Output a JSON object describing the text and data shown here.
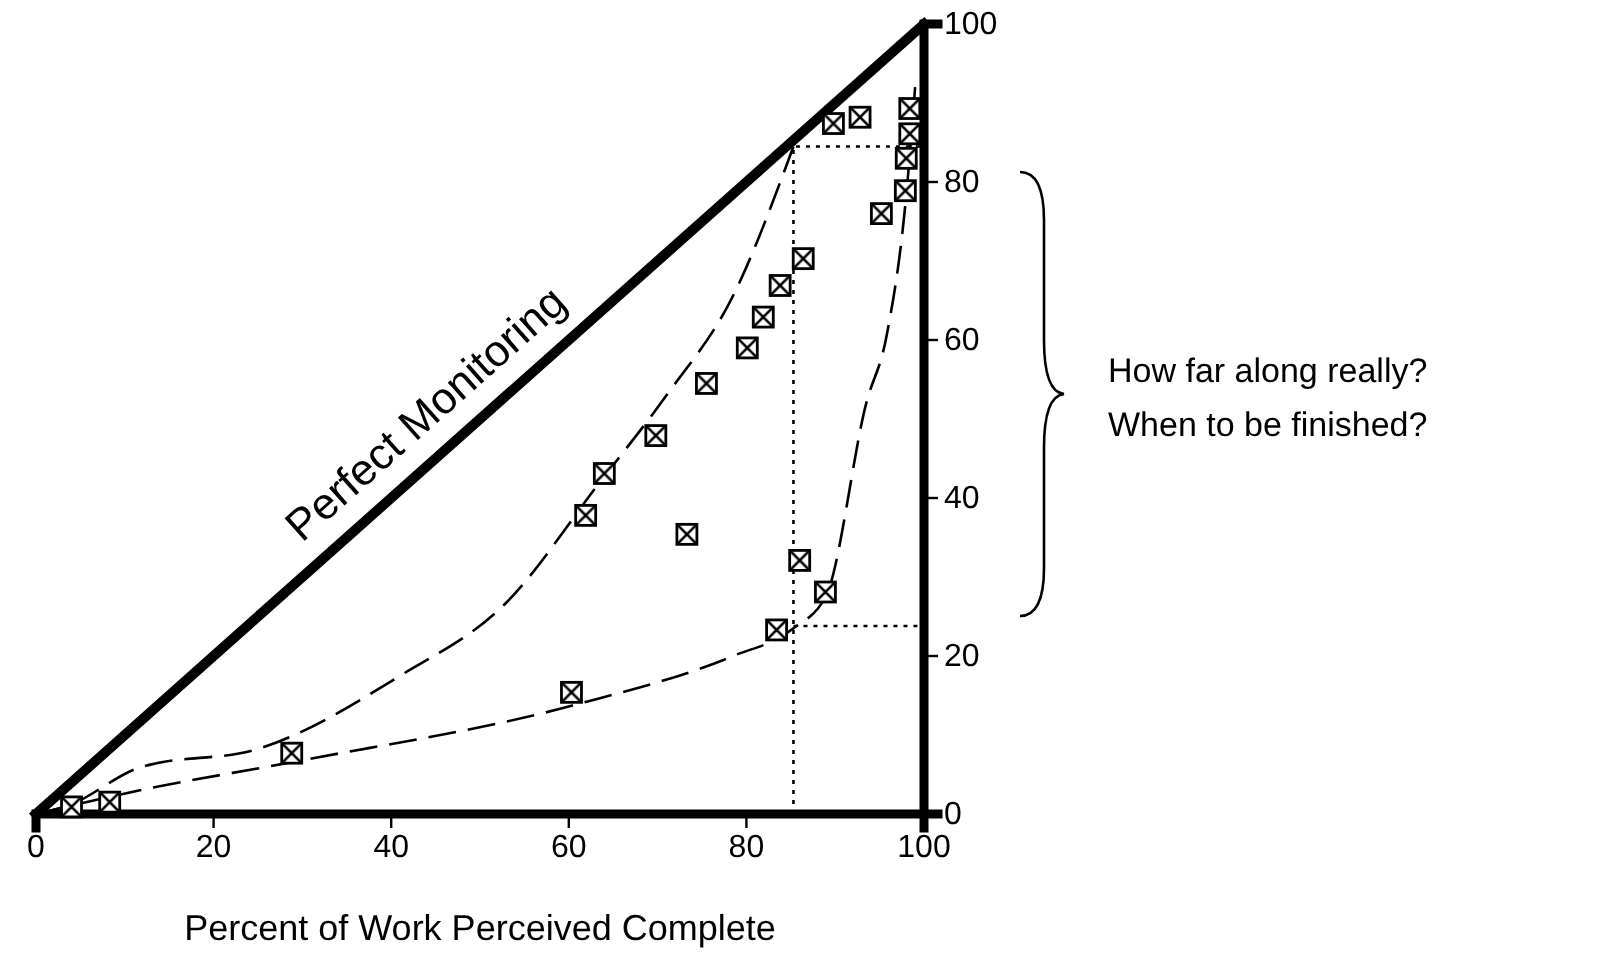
{
  "chart_data": {
    "type": "scatter",
    "xlabel": "Percent of Work Perceived Complete",
    "xlim": [
      0,
      100
    ],
    "ylim": [
      0,
      100
    ],
    "xticks": [
      0,
      20,
      40,
      60,
      80,
      100
    ],
    "yticks": [
      0,
      20,
      40,
      60,
      80,
      100
    ],
    "grid": false,
    "marker": "square",
    "annotations": [
      "How far along really?\nWhen to be finished?"
    ],
    "series": [
      {
        "type": "line",
        "name": "Perfect Monitoring",
        "color": "#000000",
        "line_style": "solid",
        "marker": "none",
        "x": [
          0,
          100
        ],
        "values": [
          0,
          100
        ]
      },
      {
        "type": "line",
        "color": "#000000",
        "line_style": "dashed",
        "marker": "none",
        "x": [
          0,
          3.5,
          11.7,
          25.2,
          41,
          53,
          63.5,
          71,
          78.5,
          85.3
        ],
        "values": [
          0,
          1,
          5.9,
          8.3,
          17.5,
          26.8,
          42,
          53,
          65.6,
          84.5
        ]
      },
      {
        "type": "line",
        "color": "#000000",
        "line_style": "dashed",
        "marker": "none",
        "x": [
          0,
          11.7,
          29,
          60.3,
          78.5,
          85.3,
          89,
          93.5,
          95.8,
          98,
          99
        ],
        "values": [
          0,
          3,
          6.6,
          13.7,
          20,
          23.5,
          27.7,
          52,
          60.6,
          78.3,
          92
        ]
      },
      {
        "type": "line",
        "color": "#000000",
        "line_style": "dotted",
        "marker": "none",
        "x": [
          85.3,
          85.3,
          100
        ],
        "values": [
          0,
          84.5,
          84.5
        ]
      },
      {
        "type": "line",
        "color": "#000000",
        "line_style": "dotted",
        "marker": "none",
        "x": [
          85.3,
          100
        ],
        "values": [
          23.8,
          23.8
        ]
      },
      {
        "color": "#000000",
        "x": [
          4,
          8.3,
          28.8,
          60.3,
          61.9,
          64,
          69.8,
          73.3,
          75.5,
          80.1,
          81.9,
          83.8,
          86.4,
          83.4,
          86,
          88.9,
          89.8,
          92.8,
          98.4,
          98.4,
          98,
          97.9,
          95.2
        ],
        "values": [
          0.9,
          1.5,
          7.7,
          15.4,
          37.8,
          43.1,
          47.9,
          35.4,
          54.5,
          59,
          62.9,
          66.9,
          70.3,
          23.3,
          32.1,
          28.1,
          87.4,
          88.2,
          89.3,
          86.1,
          83,
          78.9,
          76
        ]
      }
    ]
  }
}
